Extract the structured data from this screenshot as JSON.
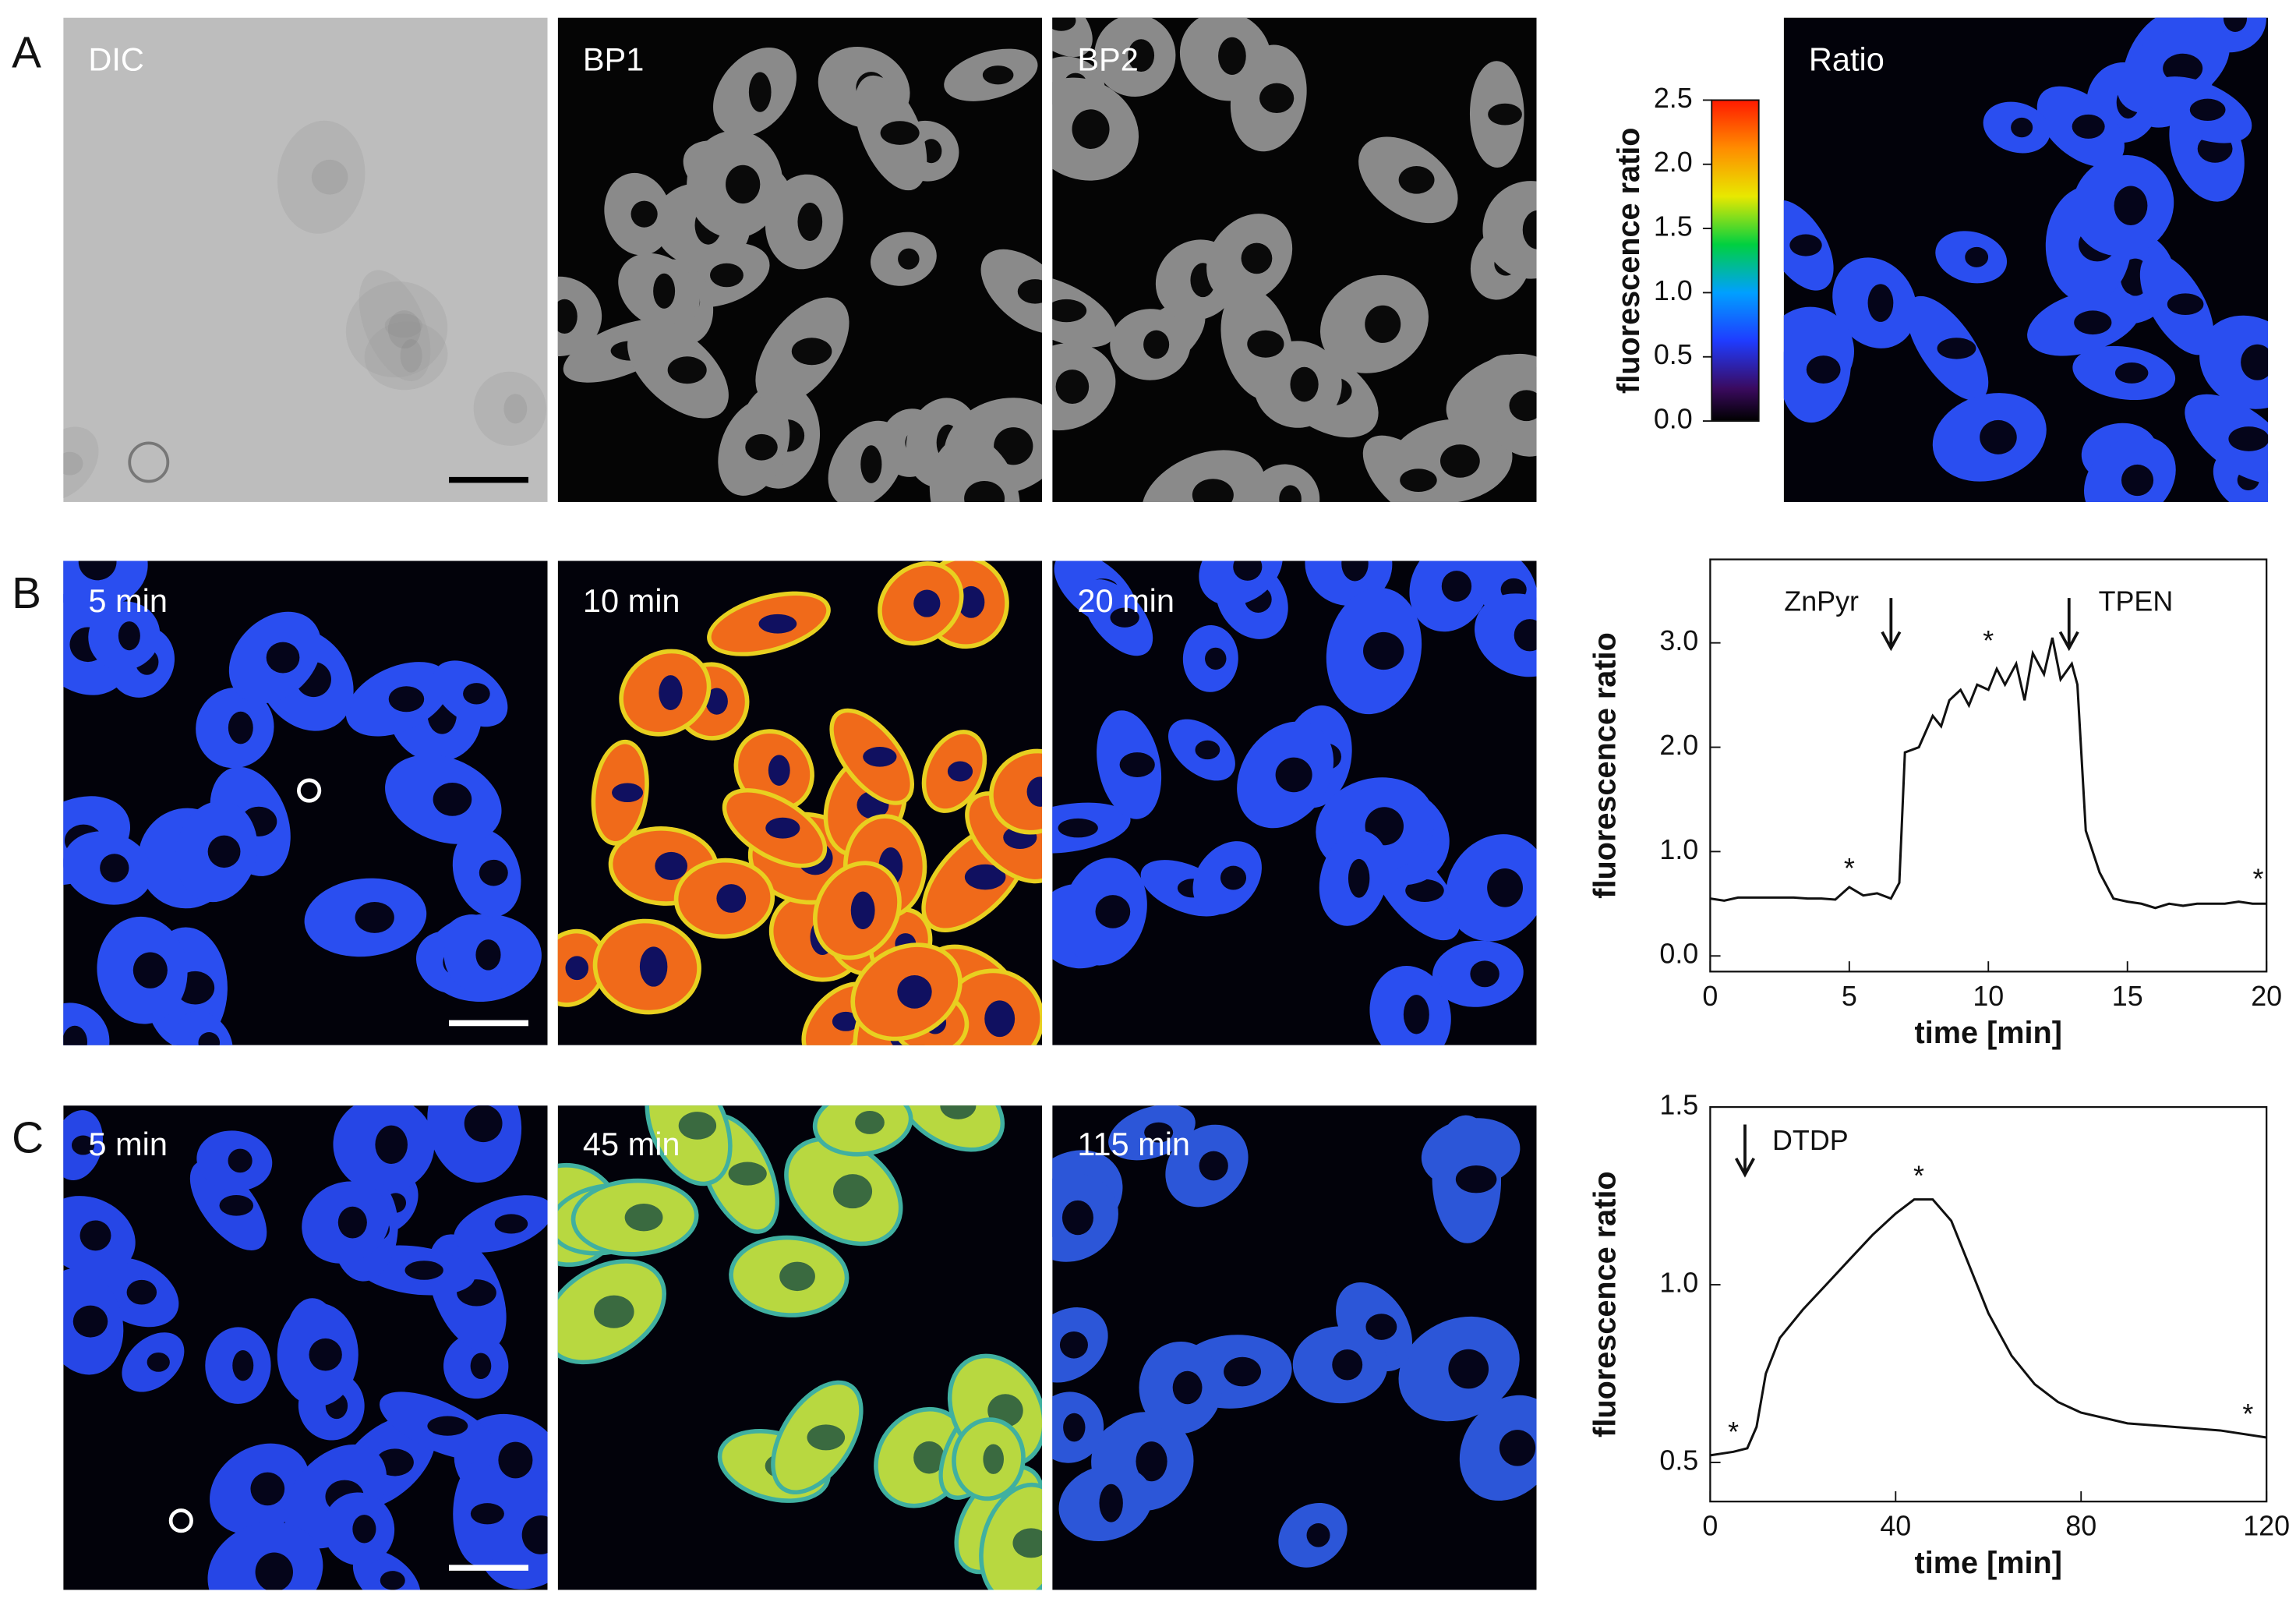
{
  "figure": {
    "panels": [
      "A",
      "B",
      "C"
    ],
    "row_a": [
      "DIC",
      "BP1",
      "BP2",
      "Ratio"
    ],
    "row_b": [
      "5 min",
      "10 min",
      "20 min"
    ],
    "row_c": [
      "5 min",
      "45 min",
      "115 min"
    ]
  },
  "colorbar": {
    "label": "fluorescence ratio",
    "lim": [
      0,
      2.5
    ],
    "ticks": [
      {
        "value": 0,
        "label": "0.0"
      },
      0.5,
      {
        "value": 1,
        "label": "1.0"
      },
      1.5,
      {
        "value": 2,
        "label": "2.0"
      },
      2.5
    ]
  },
  "chart_data": [
    {
      "type": "line",
      "xlabel": "time [min]",
      "ylabel": "fluorescence ratio",
      "x": [
        0,
        0.5,
        1,
        1.5,
        2,
        2.5,
        3,
        3.5,
        4,
        4.5,
        5,
        5.5,
        6,
        6.5,
        6.8,
        7,
        7.5,
        8,
        8.3,
        8.6,
        9,
        9.3,
        9.6,
        10,
        10.3,
        10.6,
        11,
        11.3,
        11.6,
        12,
        12.3,
        12.6,
        13,
        13.2,
        13.5,
        14,
        14.5,
        15,
        15.5,
        16,
        16.5,
        17,
        17.5,
        18,
        18.5,
        19,
        19.5,
        20
      ],
      "values": [
        0.55,
        0.53,
        0.56,
        0.56,
        0.56,
        0.56,
        0.56,
        0.55,
        0.55,
        0.54,
        0.66,
        0.58,
        0.6,
        0.55,
        0.7,
        1.95,
        2.0,
        2.3,
        2.2,
        2.45,
        2.55,
        2.4,
        2.6,
        2.55,
        2.75,
        2.6,
        2.8,
        2.45,
        2.9,
        2.7,
        3.05,
        2.65,
        2.8,
        2.6,
        1.2,
        0.8,
        0.55,
        0.52,
        0.5,
        0.46,
        0.5,
        0.48,
        0.5,
        0.5,
        0.5,
        0.52,
        0.5,
        0.5
      ],
      "color": "#111111",
      "xlim": [
        0,
        20
      ],
      "ylim": [
        -0.15,
        3.8
      ],
      "xticks": [
        0,
        5,
        10,
        15,
        20
      ],
      "yticks": [
        {
          "value": 0,
          "label": "0.0"
        },
        {
          "value": 1,
          "label": "1.0"
        },
        {
          "value": 2,
          "label": "2.0"
        },
        {
          "value": 3,
          "label": "3.0"
        }
      ],
      "annotations": [
        {
          "text": "ZnPyr",
          "x": 4.0,
          "y": 3.38
        },
        {
          "text": "TPEN",
          "x": 15.3,
          "y": 3.38
        },
        {
          "text": "*",
          "x": 5,
          "y": 0.82
        },
        {
          "text": "*",
          "x": 10,
          "y": 3.0
        },
        {
          "text": "*",
          "x": 19.7,
          "y": 0.72
        }
      ],
      "arrows": [
        {
          "x": 6.5,
          "y": 2.95
        },
        {
          "x": 12.9,
          "y": 2.95
        }
      ]
    },
    {
      "type": "line",
      "xlabel": "time [min]",
      "ylabel": "fluorescence ratio",
      "x": [
        0,
        5,
        8,
        10,
        12,
        15,
        20,
        25,
        30,
        35,
        40,
        44,
        48,
        52,
        56,
        60,
        65,
        70,
        75,
        80,
        90,
        100,
        110,
        120
      ],
      "values": [
        0.52,
        0.53,
        0.54,
        0.6,
        0.75,
        0.85,
        0.93,
        1.0,
        1.07,
        1.14,
        1.2,
        1.24,
        1.24,
        1.18,
        1.05,
        0.92,
        0.8,
        0.72,
        0.67,
        0.64,
        0.61,
        0.6,
        0.59,
        0.57
      ],
      "color": "#111111",
      "xlim": [
        0,
        120
      ],
      "ylim": [
        0.39,
        1.5
      ],
      "xticks": [
        0,
        40,
        80,
        120
      ],
      "yticks": [
        0.5,
        {
          "value": 1,
          "label": "1.0"
        },
        1.5
      ],
      "annotations": [
        {
          "text": "DTDP",
          "x": 21.6,
          "y": 1.4
        },
        {
          "text": "*",
          "x": 5,
          "y": 0.58
        },
        {
          "text": "*",
          "x": 45,
          "y": 1.3
        },
        {
          "text": "*",
          "x": 116,
          "y": 0.63
        }
      ],
      "arrows": [
        {
          "x": 7.5,
          "y": 1.31
        }
      ]
    }
  ]
}
